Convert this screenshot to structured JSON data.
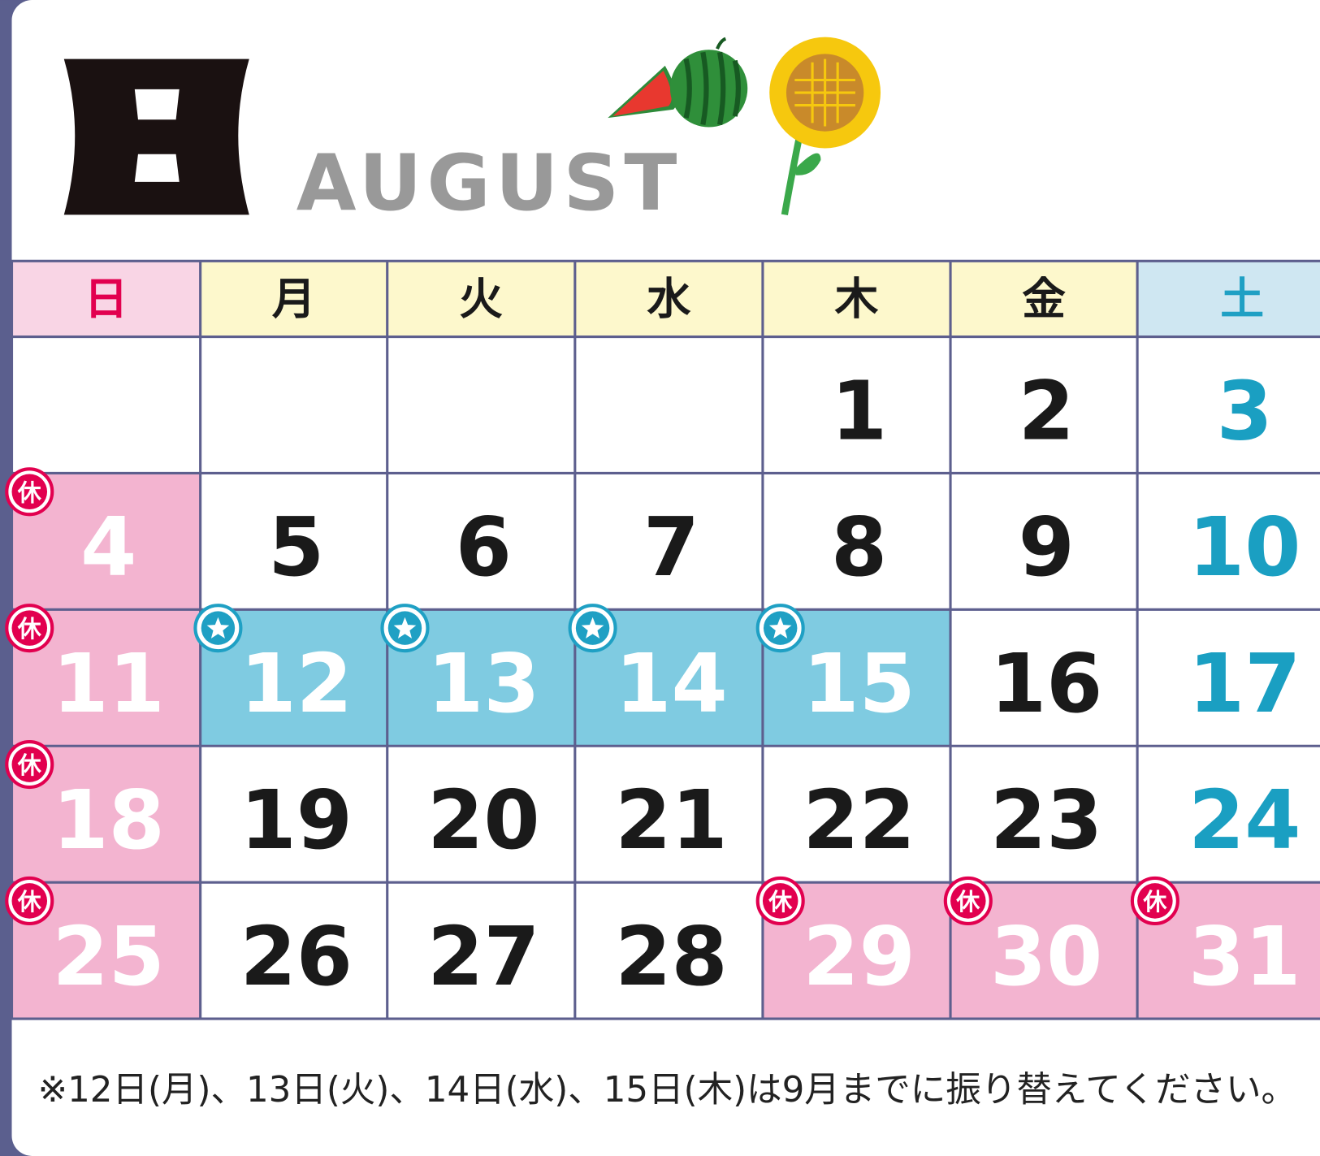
{
  "calendar": {
    "month_name": "AUGUST",
    "weekdays": [
      "日",
      "月",
      "火",
      "水",
      "木",
      "金",
      "土"
    ],
    "weeks": [
      [
        null,
        null,
        null,
        null,
        1,
        2,
        3
      ],
      [
        4,
        5,
        6,
        7,
        8,
        9,
        10
      ],
      [
        11,
        12,
        13,
        14,
        15,
        16,
        17
      ],
      [
        18,
        19,
        20,
        21,
        22,
        23,
        24
      ],
      [
        25,
        26,
        27,
        28,
        29,
        30,
        31
      ]
    ],
    "holidays": [
      4,
      11,
      18,
      25,
      29,
      30,
      31
    ],
    "substitute_days": [
      12,
      13,
      14,
      15
    ],
    "holiday_mark": "休",
    "footnote": "※12日(月)、13日(火)、14日(水)、15日(木)は9月までに振り替えてください。"
  }
}
